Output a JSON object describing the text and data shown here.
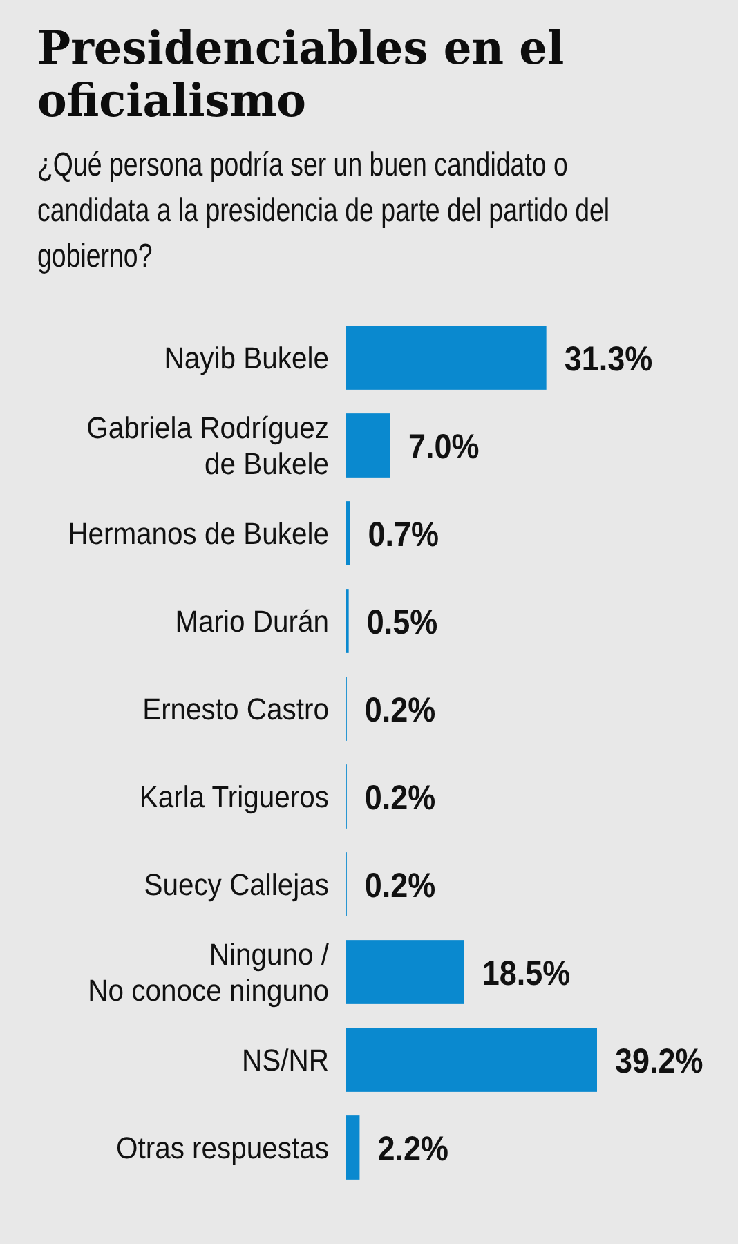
{
  "chart_data": {
    "type": "bar",
    "orientation": "horizontal",
    "title": "Presidenciables en el oficialismo",
    "subtitle": "¿Qué persona podría ser un buen candidato o candidata a la presidencia de parte del partido del gobierno?",
    "categories": [
      "Nayib Bukele",
      "Gabriela Rodríguez de Bukele",
      "Hermanos de Bukele",
      "Mario Durán",
      "Ernesto Castro",
      "Karla Trigueros",
      "Suecy Callejas",
      "Ninguno / No conoce ninguno",
      "NS/NR",
      "Otras respuestas"
    ],
    "values": [
      31.3,
      7.0,
      0.7,
      0.5,
      0.2,
      0.2,
      0.2,
      18.5,
      39.2,
      2.2
    ],
    "value_labels": [
      "31.3%",
      "7.0%",
      "0.7%",
      "0.5%",
      "0.2%",
      "0.2%",
      "0.2%",
      "18.5%",
      "39.2%",
      "2.2%"
    ],
    "color": "#0a89cf"
  }
}
